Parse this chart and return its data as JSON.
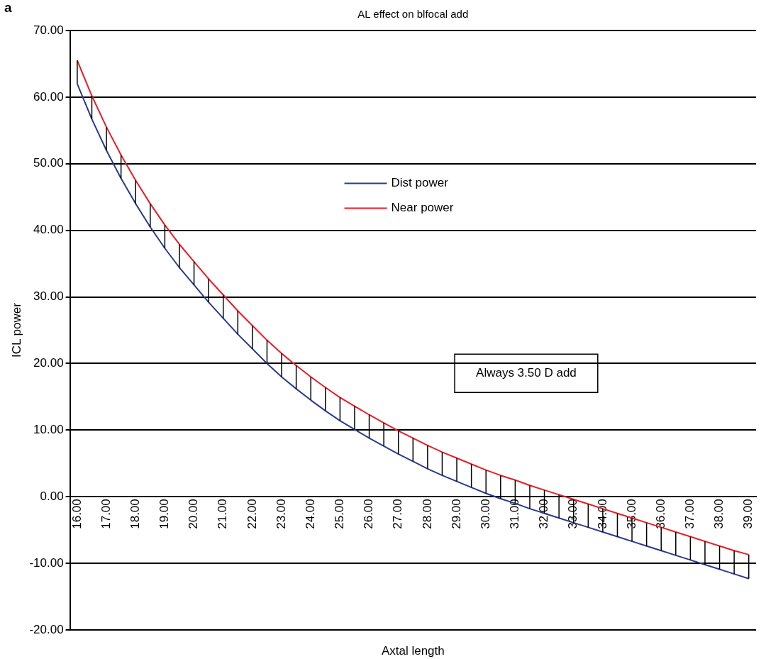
{
  "chart_data": {
    "type": "line",
    "title": "AL effect on blfocal add",
    "xlabel": "Axtal length",
    "ylabel": "ICL power",
    "annotations": [
      "a",
      "Always 3.50 D add"
    ],
    "x": [
      16,
      16.5,
      17,
      17.5,
      18,
      18.5,
      19,
      19.5,
      20,
      20.5,
      21,
      21.5,
      22,
      22.5,
      23,
      23.5,
      24,
      24.5,
      25,
      25.5,
      26,
      26.5,
      27,
      27.5,
      28,
      28.5,
      29,
      29.5,
      30,
      30.5,
      31,
      31.5,
      32,
      32.5,
      33,
      33.5,
      34,
      34.5,
      35,
      35.5,
      36,
      36.5,
      37,
      37.5,
      38,
      38.5,
      39
    ],
    "series": [
      {
        "name": "Dist power",
        "color": "#2b3990",
        "values": [
          62.0,
          56.7,
          52.0,
          47.8,
          44.0,
          40.5,
          37.3,
          34.4,
          31.8,
          29.2,
          26.8,
          24.4,
          22.2,
          20.0,
          18.0,
          16.2,
          14.5,
          12.9,
          11.4,
          10.1,
          8.8,
          7.6,
          6.4,
          5.3,
          4.2,
          3.2,
          2.3,
          1.4,
          0.5,
          -0.3,
          -1.0,
          -1.8,
          -2.5,
          -3.2,
          -3.9,
          -4.6,
          -5.3,
          -6.0,
          -6.7,
          -7.4,
          -8.1,
          -8.8,
          -9.5,
          -10.2,
          -10.9,
          -11.6,
          -12.3
        ],
        "errors": [
          [
            62.0,
            65.5
          ],
          [
            56.7,
            60.2
          ],
          [
            52.0,
            55.5
          ],
          [
            47.8,
            51.3
          ],
          [
            44.0,
            47.5
          ],
          [
            40.5,
            44.0
          ],
          [
            37.3,
            40.8
          ],
          [
            34.4,
            37.9
          ],
          [
            31.8,
            35.3
          ],
          [
            29.2,
            32.7
          ],
          [
            26.8,
            30.3
          ],
          [
            24.4,
            27.9
          ],
          [
            22.2,
            25.7
          ],
          [
            20.0,
            23.5
          ],
          [
            18.0,
            21.5
          ],
          [
            16.2,
            19.7
          ],
          [
            14.5,
            18.0
          ],
          [
            12.9,
            16.4
          ],
          [
            11.4,
            14.9
          ],
          [
            10.1,
            13.6
          ],
          [
            8.8,
            12.3
          ],
          [
            7.6,
            11.1
          ],
          [
            6.4,
            9.9
          ],
          [
            5.3,
            8.8
          ],
          [
            4.2,
            7.7
          ],
          [
            3.2,
            6.7
          ],
          [
            2.3,
            5.8
          ],
          [
            1.4,
            4.9
          ],
          [
            0.5,
            4.0
          ],
          [
            -0.3,
            3.2
          ],
          [
            -1.0,
            2.5
          ],
          [
            -1.8,
            1.7
          ],
          [
            -2.5,
            1.0
          ],
          [
            -3.2,
            0.3
          ],
          [
            -3.9,
            -0.4
          ],
          [
            -4.6,
            -1.1
          ],
          [
            -5.3,
            -1.8
          ],
          [
            -6.0,
            -2.5
          ],
          [
            -6.7,
            -3.2
          ],
          [
            -7.4,
            -3.9
          ],
          [
            -8.1,
            -4.6
          ],
          [
            -8.8,
            -5.3
          ],
          [
            -9.5,
            -6.0
          ],
          [
            -10.2,
            -6.7
          ],
          [
            -10.9,
            -7.4
          ],
          [
            -11.6,
            -8.1
          ],
          [
            -12.3,
            -8.7
          ]
        ]
      },
      {
        "name": "Near power",
        "color": "#ed1c24",
        "values": [
          65.5,
          60.2,
          55.5,
          51.3,
          47.5,
          44.0,
          40.8,
          37.9,
          35.3,
          32.7,
          30.3,
          27.9,
          25.7,
          23.5,
          21.5,
          19.7,
          18.0,
          16.4,
          14.9,
          13.6,
          12.3,
          11.1,
          9.9,
          8.8,
          7.7,
          6.7,
          5.8,
          4.9,
          4.0,
          3.2,
          2.5,
          1.7,
          1.0,
          0.3,
          -0.4,
          -1.1,
          -1.8,
          -2.5,
          -3.2,
          -3.9,
          -4.6,
          -5.3,
          -6.0,
          -6.7,
          -7.4,
          -8.1,
          -8.7
        ]
      }
    ],
    "xlim": [
      15.75,
      39.25
    ],
    "xticks": [
      {
        "value": 16,
        "label": "16.00"
      },
      {
        "value": 17,
        "label": "17.00"
      },
      {
        "value": 18,
        "label": "18.00"
      },
      {
        "value": 19,
        "label": "19.00"
      },
      {
        "value": 20,
        "label": "20.00"
      },
      {
        "value": 21,
        "label": "21.00"
      },
      {
        "value": 22,
        "label": "22.00"
      },
      {
        "value": 23,
        "label": "23.00"
      },
      {
        "value": 24,
        "label": "24.00"
      },
      {
        "value": 25,
        "label": "25.00"
      },
      {
        "value": 26,
        "label": "26.00"
      },
      {
        "value": 27,
        "label": "27.00"
      },
      {
        "value": 28,
        "label": "28.00"
      },
      {
        "value": 29,
        "label": "29.00"
      },
      {
        "value": 30,
        "label": "30.00"
      },
      {
        "value": 31,
        "label": "31.00"
      },
      {
        "value": 32,
        "label": "32.00"
      },
      {
        "value": 33,
        "label": "33.00"
      },
      {
        "value": 34,
        "label": "34.00"
      },
      {
        "value": 35,
        "label": "35.00"
      },
      {
        "value": 36,
        "label": "36.00"
      },
      {
        "value": 37,
        "label": "37.00"
      },
      {
        "value": 38,
        "label": "38.00"
      },
      {
        "value": 39,
        "label": "39.00"
      }
    ],
    "ylim": [
      -20,
      70
    ],
    "yticks": [
      {
        "value": -20,
        "label": "-20.00"
      },
      {
        "value": -10,
        "label": "-10.00"
      },
      {
        "value": 0,
        "label": "0.00"
      },
      {
        "value": 10,
        "label": "10.00"
      },
      {
        "value": 20,
        "label": "20.00"
      },
      {
        "value": 30,
        "label": "30.00"
      },
      {
        "value": 40,
        "label": "40.00"
      },
      {
        "value": 50,
        "label": "50.00"
      },
      {
        "value": 60,
        "label": "60.00"
      },
      {
        "value": 70,
        "label": "70.00"
      }
    ],
    "grid": "y",
    "legend": "top",
    "marker": "none",
    "line_style": "solid"
  }
}
